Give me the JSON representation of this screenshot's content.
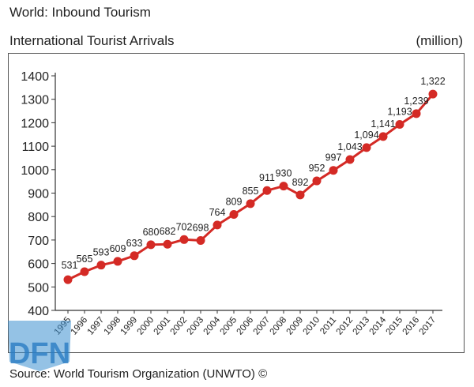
{
  "header": {
    "title": "World: Inbound Tourism",
    "subtitle": "International Tourist Arrivals",
    "unit": "(million)"
  },
  "footer": {
    "source": "Source: World Tourism Organization (UNWTO) ©"
  },
  "logo": {
    "text": "DFN"
  },
  "chart_data": {
    "type": "line",
    "title": "International Tourist Arrivals",
    "ylabel": "(million)",
    "x": [
      "1995",
      "1996",
      "1997",
      "1998",
      "1999",
      "2000",
      "2001",
      "2002",
      "2003",
      "2004",
      "2005",
      "2006",
      "2007",
      "2008",
      "2009",
      "2010",
      "2011",
      "2012",
      "2013",
      "2014",
      "2015",
      "2016",
      "2017"
    ],
    "series": [
      {
        "name": "",
        "values": [
          531,
          565,
          593,
          609,
          633,
          680,
          682,
          702,
          698,
          764,
          809,
          855,
          911,
          930,
          892,
          952,
          997,
          1043,
          1094,
          1141,
          1193,
          1239,
          1322
        ]
      }
    ],
    "data_labels": [
      "531",
      "565",
      "593",
      "609",
      "633",
      "680",
      "682",
      "702",
      "698",
      "764",
      "809",
      "855",
      "911",
      "930",
      "892",
      "952",
      "997",
      "1,043",
      "1,094",
      "1,141",
      "1,193",
      "1,239",
      "1,322"
    ],
    "yticks": [
      "400",
      "500",
      "600",
      "700",
      "800",
      "900",
      "1000",
      "1100",
      "1200",
      "1300",
      "1400"
    ],
    "ylim": [
      400,
      1400
    ],
    "grid": false,
    "line_color": "#d42a25",
    "marker_color": "#d42a25"
  }
}
